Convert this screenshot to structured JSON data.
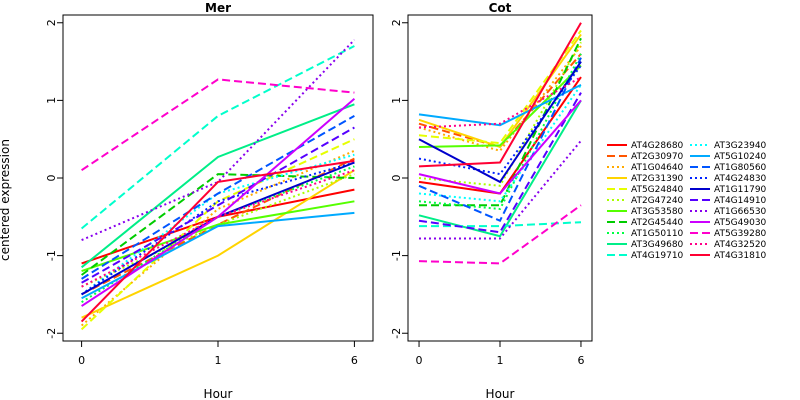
{
  "figure": {
    "ylabel": "centered expression",
    "xlabel": "Hour"
  },
  "chart_data": {
    "type": "line",
    "x": [
      0,
      1,
      6
    ],
    "x_tick_labels": [
      "0",
      "1",
      "6"
    ],
    "ylim": [
      -2.1,
      2.1
    ],
    "y_ticks": [
      -2,
      -1,
      0,
      1,
      2
    ],
    "legend_placement": "right",
    "legend": [
      {
        "name": "AT4G28680",
        "color": "#ff0000",
        "dash": "solid"
      },
      {
        "name": "AT2G30970",
        "color": "#ff5500",
        "dash": "dashed"
      },
      {
        "name": "AT1G04640",
        "color": "#ffaa00",
        "dash": "dotted"
      },
      {
        "name": "AT2G31390",
        "color": "#ffd400",
        "dash": "solid"
      },
      {
        "name": "AT5G24840",
        "color": "#e6ff00",
        "dash": "dashed"
      },
      {
        "name": "AT2G47240",
        "color": "#aaff00",
        "dash": "dotted"
      },
      {
        "name": "AT3G53580",
        "color": "#55ff00",
        "dash": "solid"
      },
      {
        "name": "AT2G45440",
        "color": "#00cc00",
        "dash": "dashed"
      },
      {
        "name": "AT1G50110",
        "color": "#00ff44",
        "dash": "dotted"
      },
      {
        "name": "AT3G49680",
        "color": "#00ee88",
        "dash": "solid"
      },
      {
        "name": "AT4G19710",
        "color": "#00ffcc",
        "dash": "dashed"
      },
      {
        "name": "AT3G23940",
        "color": "#00ffff",
        "dash": "dotted"
      },
      {
        "name": "AT5G10240",
        "color": "#00aaff",
        "dash": "solid"
      },
      {
        "name": "AT1G80560",
        "color": "#0055ff",
        "dash": "dashed"
      },
      {
        "name": "AT4G24830",
        "color": "#0022ff",
        "dash": "dotted"
      },
      {
        "name": "AT1G11790",
        "color": "#0000cc",
        "dash": "solid"
      },
      {
        "name": "AT4G14910",
        "color": "#5500ff",
        "dash": "dashed"
      },
      {
        "name": "AT1G66530",
        "color": "#8800ee",
        "dash": "dotted"
      },
      {
        "name": "AT5G49030",
        "color": "#cc00ff",
        "dash": "solid"
      },
      {
        "name": "AT5G39280",
        "color": "#ff00cc",
        "dash": "dashed"
      },
      {
        "name": "AT4G32520",
        "color": "#ff0088",
        "dash": "dotted"
      },
      {
        "name": "AT4G31810",
        "color": "#ff0033",
        "dash": "solid"
      }
    ],
    "panels": [
      {
        "title": "Mer",
        "series": [
          {
            "name": "AT4G28680",
            "values": [
              -1.1,
              -0.5,
              -0.15
            ]
          },
          {
            "name": "AT2G30970",
            "values": [
              -1.5,
              -0.6,
              0.25
            ]
          },
          {
            "name": "AT1G04640",
            "values": [
              -1.9,
              -0.4,
              0.35
            ]
          },
          {
            "name": "AT2G31390",
            "values": [
              -1.8,
              -1.0,
              0.1
            ]
          },
          {
            "name": "AT5G24840",
            "values": [
              -1.95,
              -0.3,
              0.5
            ]
          },
          {
            "name": "AT2G47240",
            "values": [
              -1.4,
              -0.6,
              0.05
            ]
          },
          {
            "name": "AT3G53580",
            "values": [
              -1.2,
              -0.6,
              -0.3
            ]
          },
          {
            "name": "AT2G45440",
            "values": [
              -1.25,
              0.05,
              0.0
            ]
          },
          {
            "name": "AT1G50110",
            "values": [
              -1.6,
              -0.5,
              0.15
            ]
          },
          {
            "name": "AT3G49680",
            "values": [
              -1.15,
              0.27,
              0.95
            ]
          },
          {
            "name": "AT4G19710",
            "values": [
              -0.65,
              0.8,
              1.7
            ]
          },
          {
            "name": "AT3G23940",
            "values": [
              -1.5,
              -0.2,
              0.3
            ]
          },
          {
            "name": "AT5G10240",
            "values": [
              -1.55,
              -0.62,
              -0.45
            ]
          },
          {
            "name": "AT1G80560",
            "values": [
              -1.3,
              -0.2,
              0.8
            ]
          },
          {
            "name": "AT4G24830",
            "values": [
              -1.5,
              -0.3,
              0.2
            ]
          },
          {
            "name": "AT1G11790",
            "values": [
              -1.5,
              -0.5,
              0.2
            ]
          },
          {
            "name": "AT4G14910",
            "values": [
              -1.35,
              -0.35,
              0.65
            ]
          },
          {
            "name": "AT1G66530",
            "values": [
              -0.8,
              -0.05,
              1.78
            ]
          },
          {
            "name": "AT5G49030",
            "values": [
              -1.65,
              -0.5,
              1.02
            ]
          },
          {
            "name": "AT5G39280",
            "values": [
              0.1,
              1.27,
              1.1
            ]
          },
          {
            "name": "AT4G32520",
            "values": [
              -1.4,
              -0.5,
              0.1
            ]
          },
          {
            "name": "AT4G31810",
            "values": [
              -1.85,
              -0.05,
              0.22
            ]
          }
        ]
      },
      {
        "title": "Cot",
        "series": [
          {
            "name": "AT4G28680",
            "values": [
              -0.05,
              -0.2,
              1.3
            ]
          },
          {
            "name": "AT2G30970",
            "values": [
              0.7,
              0.4,
              1.6
            ]
          },
          {
            "name": "AT1G04640",
            "values": [
              0.65,
              0.35,
              1.7
            ]
          },
          {
            "name": "AT2G31390",
            "values": [
              0.75,
              0.4,
              1.85
            ]
          },
          {
            "name": "AT5G24840",
            "values": [
              0.55,
              0.45,
              1.9
            ]
          },
          {
            "name": "AT2G47240",
            "values": [
              0.0,
              -0.1,
              1.75
            ]
          },
          {
            "name": "AT3G53580",
            "values": [
              0.4,
              0.42,
              1.45
            ]
          },
          {
            "name": "AT2G45440",
            "values": [
              -0.35,
              -0.35,
              1.8
            ]
          },
          {
            "name": "AT1G50110",
            "values": [
              -0.3,
              -0.4,
              1.6
            ]
          },
          {
            "name": "AT3G49680",
            "values": [
              -0.48,
              -0.75,
              1.0
            ]
          },
          {
            "name": "AT4G19710",
            "values": [
              -0.62,
              -0.62,
              -0.57
            ]
          },
          {
            "name": "AT3G23940",
            "values": [
              -0.2,
              -0.3,
              1.2
            ]
          },
          {
            "name": "AT5G10240",
            "values": [
              0.82,
              0.68,
              1.2
            ]
          },
          {
            "name": "AT1G80560",
            "values": [
              -0.1,
              -0.55,
              1.55
            ]
          },
          {
            "name": "AT4G24830",
            "values": [
              0.25,
              0.05,
              1.45
            ]
          },
          {
            "name": "AT1G11790",
            "values": [
              0.5,
              -0.05,
              1.5
            ]
          },
          {
            "name": "AT4G14910",
            "values": [
              -0.55,
              -0.7,
              1.1
            ]
          },
          {
            "name": "AT1G66530",
            "values": [
              -0.78,
              -0.78,
              0.48
            ]
          },
          {
            "name": "AT5G49030",
            "values": [
              0.05,
              -0.2,
              1.0
            ]
          },
          {
            "name": "AT5G39280",
            "values": [
              -1.07,
              -1.1,
              -0.35
            ]
          },
          {
            "name": "AT4G32520",
            "values": [
              0.65,
              0.7,
              1.3
            ]
          },
          {
            "name": "AT4G31810",
            "values": [
              0.15,
              0.2,
              2.0
            ]
          }
        ]
      }
    ]
  }
}
